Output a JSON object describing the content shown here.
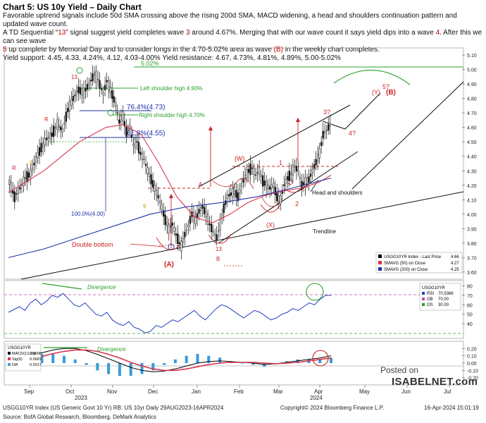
{
  "header": {
    "title": "Chart 5: US 10y Yield – Daily Chart",
    "line1": "Favorable uptrend signals include 50d SMA crossing above the rising 200d SMA, MACD widening, a head and shoulders continuation pattern and updated wave count.",
    "line2a": "A TD Sequential “",
    "line2b": "13",
    "line2c": "” signal suggest yield completes wave ",
    "line2d": "3",
    "line2e": " around 4.67%. Merging that with our wave count it says yield dips into a wave ",
    "line2f": "4",
    "line2g": ". After this we can see wave",
    "line3a": "5",
    "line3b": " up complete by Memorial Day and to consider longs in the 4.70-5.02% area as wave ",
    "line3c": "(B)",
    "line3d": " in the weekly chart completes.",
    "line4": "Yield support: 4.45, 4.33, 4.24%, 4.12, 4.03-4.00%    Yield resistance: 4.67, 4.73%, 4.81%, 4.89%, 5.00-5.02%"
  },
  "chart_data": [
    {
      "type": "line",
      "panel": "price",
      "ylim": [
        3.58,
        5.12
      ],
      "yticks": [
        "5.10",
        "5.00",
        "4.90",
        "4.80",
        "4.70",
        "4.60",
        "4.50",
        "4.40",
        "4.30",
        "4.20",
        "4.10",
        "4.00",
        "3.90",
        "3.80",
        "3.70",
        "3.60"
      ],
      "series": [
        {
          "name": "USGG10YR Index - Last Price",
          "value": "4.66",
          "color": "#000000",
          "points": [
            [
              0,
              4.22
            ],
            [
              3,
              4.12
            ],
            [
              6,
              4.18
            ],
            [
              9,
              4.25
            ],
            [
              12,
              4.28
            ],
            [
              15,
              4.38
            ],
            [
              18,
              4.46
            ],
            [
              21,
              4.52
            ],
            [
              24,
              4.55
            ],
            [
              27,
              4.62
            ],
            [
              30,
              4.58
            ],
            [
              33,
              4.72
            ],
            [
              36,
              4.8
            ],
            [
              39,
              4.86
            ],
            [
              42,
              4.84
            ],
            [
              45,
              4.9
            ],
            [
              48,
              4.97
            ],
            [
              50,
              4.93
            ],
            [
              53,
              4.83
            ],
            [
              55,
              4.92
            ],
            [
              57,
              4.86
            ],
            [
              60,
              4.76
            ],
            [
              62,
              4.64
            ],
            [
              64,
              4.68
            ],
            [
              66,
              4.57
            ],
            [
              68,
              4.6
            ],
            [
              70,
              4.48
            ],
            [
              72,
              4.5
            ],
            [
              74,
              4.42
            ],
            [
              76,
              4.38
            ],
            [
              78,
              4.3
            ],
            [
              80,
              4.24
            ],
            [
              82,
              4.18
            ],
            [
              84,
              4.12
            ],
            [
              86,
              4.05
            ],
            [
              88,
              3.96
            ],
            [
              90,
              3.9
            ],
            [
              92,
              3.93
            ],
            [
              94,
              3.86
            ],
            [
              96,
              3.8
            ],
            [
              97,
              3.78
            ],
            [
              99,
              3.86
            ],
            [
              101,
              3.92
            ],
            [
              103,
              4.0
            ],
            [
              105,
              3.96
            ],
            [
              107,
              4.02
            ],
            [
              109,
              4.05
            ],
            [
              111,
              4.0
            ],
            [
              113,
              3.93
            ],
            [
              115,
              3.88
            ],
            [
              117,
              3.84
            ],
            [
              119,
              3.93
            ],
            [
              121,
              4.04
            ],
            [
              123,
              4.12
            ],
            [
              125,
              4.14
            ],
            [
              127,
              4.16
            ],
            [
              129,
              4.12
            ],
            [
              131,
              4.2
            ],
            [
              133,
              4.26
            ],
            [
              135,
              4.3
            ],
            [
              137,
              4.32
            ],
            [
              139,
              4.27
            ],
            [
              141,
              4.3
            ],
            [
              143,
              4.23
            ],
            [
              145,
              4.2
            ],
            [
              147,
              4.18
            ],
            [
              149,
              4.2
            ],
            [
              151,
              4.12
            ],
            [
              153,
              4.1
            ],
            [
              155,
              4.2
            ],
            [
              157,
              4.25
            ],
            [
              159,
              4.28
            ],
            [
              161,
              4.33
            ],
            [
              163,
              4.3
            ],
            [
              165,
              4.2
            ],
            [
              167,
              4.22
            ],
            [
              169,
              4.24
            ],
            [
              171,
              4.3
            ],
            [
              173,
              4.36
            ],
            [
              175,
              4.42
            ],
            [
              177,
              4.55
            ],
            [
              179,
              4.58
            ],
            [
              181,
              4.62
            ],
            [
              182,
              4.66
            ]
          ]
        },
        {
          "name": "SMAVG (50) on Close",
          "value": "4.27",
          "color": "#d9344a",
          "points": [
            [
              0,
              4.15
            ],
            [
              20,
              4.3
            ],
            [
              40,
              4.5
            ],
            [
              55,
              4.6
            ],
            [
              65,
              4.62
            ],
            [
              75,
              4.55
            ],
            [
              85,
              4.35
            ],
            [
              95,
              4.12
            ],
            [
              105,
              3.98
            ],
            [
              115,
              3.94
            ],
            [
              125,
              4.0
            ],
            [
              135,
              4.08
            ],
            [
              145,
              4.13
            ],
            [
              155,
              4.16
            ],
            [
              165,
              4.18
            ],
            [
              175,
              4.22
            ],
            [
              182,
              4.27
            ]
          ]
        },
        {
          "name": "SMAVG (200) on Close",
          "value": "4.25",
          "color": "#2233aa",
          "points": [
            [
              0,
              3.7
            ],
            [
              20,
              3.76
            ],
            [
              40,
              3.84
            ],
            [
              60,
              3.92
            ],
            [
              80,
              4.0
            ],
            [
              100,
              4.05
            ],
            [
              120,
              4.08
            ],
            [
              140,
              4.12
            ],
            [
              160,
              4.18
            ],
            [
              182,
              4.25
            ]
          ]
        }
      ],
      "annotations": [
        "5.02%",
        "Left shoulder high 4.90%",
        "76.4%(4.73)",
        "Right shoulder high 4.70%",
        "61.8%(4.55)",
        "100.0%(4.00)",
        "Double bottom",
        "(A)",
        "13",
        "B",
        "13",
        "9",
        "9",
        "R",
        "R",
        "(W)",
        "(X)",
        "1",
        "2",
        "A",
        "Head and shoulders",
        "Trendline",
        "3?",
        "4?",
        "5?",
        "(Y)",
        "(B)"
      ]
    },
    {
      "type": "line",
      "panel": "rsi",
      "ylim": [
        25,
        85
      ],
      "yticks": [
        "80",
        "70",
        "60",
        "50",
        "40"
      ],
      "series": [
        {
          "name": "RSI",
          "value": "70.5366",
          "color": "#1f3fbf",
          "values": [
            52,
            55,
            58,
            54,
            62,
            66,
            60,
            64,
            70,
            68,
            72,
            66,
            60,
            58,
            62,
            56,
            50,
            48,
            52,
            44,
            40,
            38,
            42,
            36,
            34,
            30,
            32,
            38,
            36,
            40,
            44,
            42,
            46,
            50,
            54,
            48,
            44,
            50,
            56,
            60,
            58,
            54,
            50,
            46,
            50,
            54,
            52,
            48,
            44,
            46,
            50,
            52,
            56,
            54,
            58,
            62,
            60,
            66,
            70,
            70
          ]
        },
        {
          "name": "OB",
          "value": "70.00",
          "color": "#cc44aa"
        },
        {
          "name": "OS",
          "value": "30.00",
          "color": "#2aa02a"
        }
      ],
      "annotations": [
        "Divergence"
      ]
    },
    {
      "type": "line",
      "panel": "macd",
      "ylim": [
        -0.28,
        0.28
      ],
      "yticks": [
        "0.20",
        "0.10",
        "0.00",
        "-0.10",
        "-0.20"
      ],
      "series": [
        {
          "name": "MACD(12,26)",
          "value": "0.0998",
          "color": "#000000",
          "values": [
            0.03,
            0.06,
            0.1,
            0.14,
            0.18,
            0.2,
            0.2,
            0.17,
            0.12,
            0.06,
            0.0,
            -0.06,
            -0.1,
            -0.12,
            -0.11,
            -0.08,
            -0.04,
            0.0,
            0.02,
            0.03,
            0.02,
            0.01,
            0.0,
            -0.02,
            -0.01,
            0.01,
            0.03,
            0.05,
            0.07,
            0.1
          ]
        },
        {
          "name": "Sig(9)",
          "value": "0.0681",
          "color": "#d9344a",
          "values": [
            0.01,
            0.03,
            0.06,
            0.09,
            0.13,
            0.16,
            0.18,
            0.18,
            0.16,
            0.12,
            0.07,
            0.01,
            -0.04,
            -0.08,
            -0.1,
            -0.1,
            -0.08,
            -0.05,
            -0.02,
            0.0,
            0.01,
            0.01,
            0.01,
            0.0,
            -0.01,
            0.0,
            0.01,
            0.03,
            0.05,
            0.07
          ]
        },
        {
          "name": "Diff",
          "value": "0.0317",
          "color": "#3a9ad9"
        }
      ],
      "annotations": [
        "Divergence"
      ]
    }
  ],
  "legends": {
    "price": [
      {
        "label": "USGG10YR Index - Last Price",
        "value": "4.66",
        "color": "#000000"
      },
      {
        "label": "SMAVG (50)  on Close",
        "value": "4.27",
        "color": "#d9344a"
      },
      {
        "label": "SMAVG (200)  on Close",
        "value": "4.25",
        "color": "#2233aa"
      }
    ],
    "rsi_title": "USGG10YR",
    "rsi": [
      {
        "label": "RSI",
        "value": "70.5366",
        "color": "#1f3fbf"
      },
      {
        "label": "OB",
        "value": "70.00",
        "color": "#cc44aa"
      },
      {
        "label": "OS",
        "value": "30.00",
        "color": "#2aa02a"
      }
    ],
    "macd_title": "USGG10YR",
    "macd": [
      {
        "label": "MACD(12,26)",
        "value": "0.0998",
        "color": "#000000"
      },
      {
        "label": "Sig(9)",
        "value": "0.0681",
        "color": "#d9344a"
      },
      {
        "label": "Diff",
        "value": "0.0317",
        "color": "#3a9ad9"
      }
    ]
  },
  "months": [
    "Sep",
    "Oct",
    "Nov",
    "Dec",
    "Jan",
    "Feb",
    "Mar",
    "Apr",
    "May",
    "Jun",
    "Jul"
  ],
  "years": [
    "2023",
    "2024"
  ],
  "footer": {
    "left": "USGG10YR Index (US Generic Govt 10 Yr) RB: US 10yr Daily 29AUG2023-16APR2024",
    "mid": "Copyright© 2024 Bloomberg Finance L.P.",
    "right": "16-Apr-2024 15:01:19",
    "source": "Source: BofA Global Research, Bloomberg, DeMark Analytics"
  },
  "watermark": {
    "posted": "Posted on",
    "brand": "ISABELNET.com"
  }
}
